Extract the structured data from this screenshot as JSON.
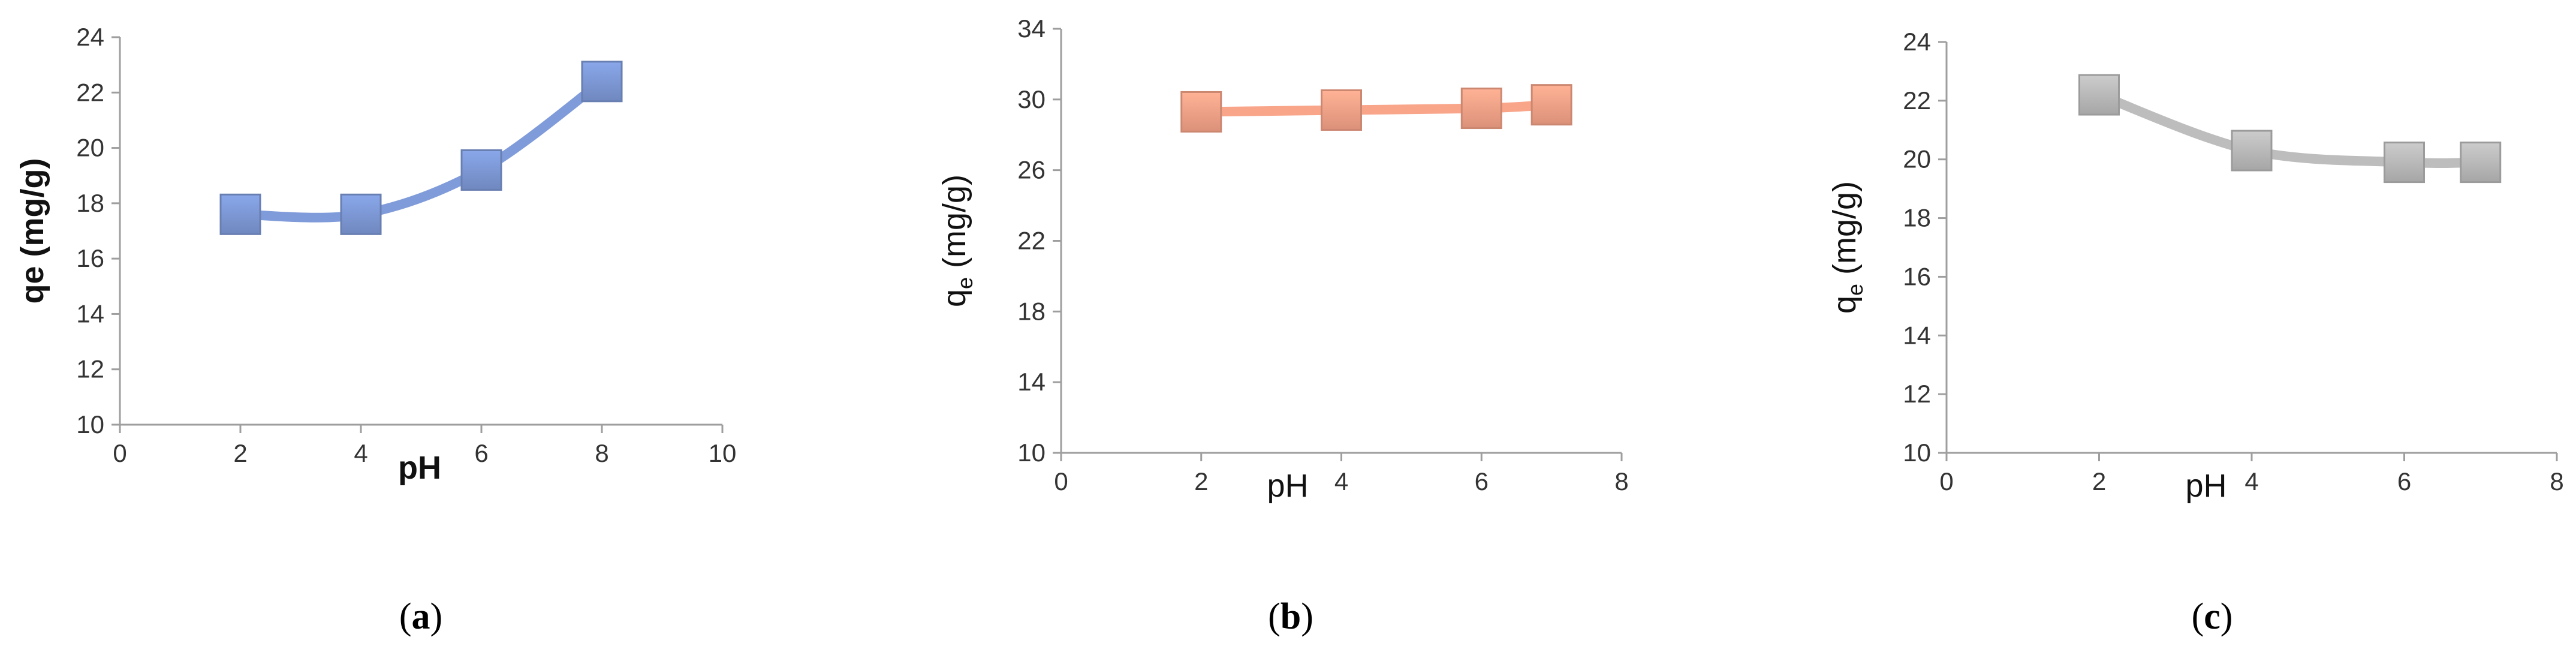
{
  "chart_data": [
    {
      "type": "line",
      "panel_label": "a",
      "xlabel": "pH",
      "ylabel": "qe (mg/g)",
      "ylabel_main": "qe",
      "ylabel_sub": "",
      "ylabel_unit": " (mg/g)",
      "bold_axis_titles": true,
      "xlim": [
        0,
        10
      ],
      "ylim": [
        10,
        24
      ],
      "xticks": [
        "0",
        "2",
        "4",
        "6",
        "8",
        "10"
      ],
      "yticks": [
        "10",
        "12",
        "14",
        "16",
        "18",
        "20",
        "22",
        "24"
      ],
      "x": [
        2,
        4,
        6,
        8
      ],
      "series": [
        {
          "values": [
            17.6,
            17.6,
            19.2,
            22.4
          ],
          "color": "#7f9bd9",
          "marker": "square",
          "smooth": true
        }
      ],
      "grid": false,
      "legend": "none"
    },
    {
      "type": "line",
      "panel_label": "b",
      "xlabel": "pH",
      "ylabel": "qe (mg/g)",
      "ylabel_main": "q",
      "ylabel_sub": "e",
      "ylabel_unit": " (mg/g)",
      "bold_axis_titles": false,
      "xlim": [
        0,
        8
      ],
      "ylim": [
        10,
        34
      ],
      "xticks": [
        "0",
        "2",
        "4",
        "6",
        "8"
      ],
      "yticks": [
        "10",
        "14",
        "18",
        "22",
        "26",
        "30",
        "34"
      ],
      "x": [
        2,
        4,
        6,
        7
      ],
      "series": [
        {
          "values": [
            29.3,
            29.4,
            29.5,
            29.7
          ],
          "color": "#f9a58a",
          "marker": "square",
          "smooth": true
        }
      ],
      "grid": false,
      "legend": "none"
    },
    {
      "type": "line",
      "panel_label": "c",
      "xlabel": "pH",
      "ylabel": "qe (mg/g)",
      "ylabel_main": "q",
      "ylabel_sub": "e",
      "ylabel_unit": " (mg/g)",
      "bold_axis_titles": false,
      "xlim": [
        0,
        8
      ],
      "ylim": [
        10,
        24
      ],
      "xticks": [
        "0",
        "2",
        "4",
        "6",
        "8"
      ],
      "yticks": [
        "10",
        "12",
        "14",
        "16",
        "18",
        "20",
        "22",
        "24"
      ],
      "x": [
        2,
        4,
        6,
        7
      ],
      "series": [
        {
          "values": [
            22.2,
            20.3,
            19.9,
            19.9
          ],
          "color": "#bdbdbd",
          "marker": "square",
          "smooth": true
        }
      ],
      "grid": false,
      "legend": "none"
    }
  ]
}
